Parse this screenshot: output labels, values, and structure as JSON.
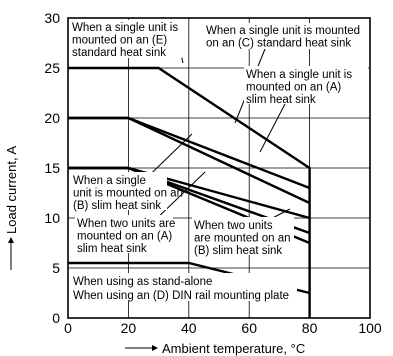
{
  "chart_data": {
    "type": "line",
    "xlabel": "Ambient temperature, °C",
    "ylabel": "Load current, A",
    "xlim": [
      0,
      100
    ],
    "ylim": [
      0,
      30
    ],
    "xticks": [
      "0",
      "20",
      "40",
      "60",
      "80",
      "100"
    ],
    "yticks": [
      "0",
      "5",
      "10",
      "15",
      "20",
      "25",
      "30"
    ],
    "grid": true,
    "series": [
      {
        "x": [
          0,
          30,
          80,
          80
        ],
        "y": [
          25,
          25,
          15,
          0
        ]
      },
      {
        "x": [
          0,
          20,
          80
        ],
        "y": [
          20,
          20,
          13
        ]
      },
      {
        "x": [
          0,
          20,
          80
        ],
        "y": [
          20,
          20,
          11.5
        ]
      },
      {
        "x": [
          0,
          20,
          80
        ],
        "y": [
          15,
          15,
          10
        ]
      },
      {
        "x": [
          0,
          20,
          80
        ],
        "y": [
          15,
          15,
          8.5
        ]
      },
      {
        "x": [
          0,
          20,
          80
        ],
        "y": [
          15,
          15,
          7.5
        ]
      },
      {
        "x": [
          0,
          40,
          80
        ],
        "y": [
          5.5,
          5.5,
          2.5
        ]
      }
    ],
    "annotations": [
      {
        "lines": [
          "When a single unit is",
          "mounted on an (E)",
          "standard heat sink"
        ]
      },
      {
        "lines": [
          "When a single unit is mounted",
          "on an (C) standard heat sink"
        ]
      },
      {
        "lines": [
          "When a single unit is",
          "mounted on an (A)",
          "slim heat sink"
        ]
      },
      {
        "lines": [
          "When a single",
          "unit is mounted on an",
          "(B) slim heat sink"
        ]
      },
      {
        "lines": [
          "When two units are",
          "mounted on an (A)",
          "slim heat sink"
        ]
      },
      {
        "lines": [
          "When two units",
          "are mounted on an",
          "(B) slim heat sink"
        ]
      },
      {
        "lines": [
          "When using as stand-alone",
          "When using an (D) DIN rail mounting plate"
        ]
      }
    ]
  }
}
